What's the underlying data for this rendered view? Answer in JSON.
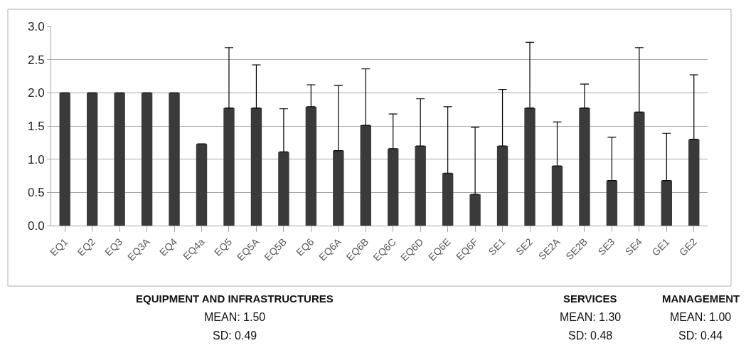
{
  "chart_data": {
    "type": "bar",
    "categories": [
      "EQ1",
      "EQ2",
      "EQ3",
      "EQ3A",
      "EQ4",
      "EQ4a",
      "EQ5",
      "EQ5A",
      "EQ5B",
      "EQ6",
      "EQ6A",
      "EQ6B",
      "EQ6C",
      "EQ6D",
      "EQ6E",
      "EQ6F",
      "SE1",
      "SE2",
      "SE2A",
      "SE2B",
      "SE3",
      "SE4",
      "GE1",
      "GE2"
    ],
    "values": [
      2.0,
      2.0,
      2.0,
      2.0,
      2.0,
      1.23,
      1.77,
      1.77,
      1.11,
      1.79,
      1.13,
      1.51,
      1.16,
      1.2,
      0.79,
      0.47,
      1.2,
      1.77,
      0.9,
      1.77,
      0.68,
      1.71,
      0.68,
      1.3
    ],
    "errors": [
      null,
      null,
      null,
      null,
      null,
      null,
      [
        1.77,
        2.68
      ],
      [
        1.77,
        2.42
      ],
      [
        1.11,
        1.76
      ],
      [
        1.79,
        2.12
      ],
      [
        1.13,
        2.11
      ],
      [
        1.51,
        2.36
      ],
      [
        1.16,
        1.68
      ],
      [
        1.2,
        1.91
      ],
      [
        0.79,
        1.79
      ],
      [
        0.47,
        1.48
      ],
      [
        1.2,
        2.05
      ],
      [
        1.77,
        2.76
      ],
      [
        0.9,
        1.56
      ],
      [
        1.77,
        2.13
      ],
      [
        0.68,
        1.33
      ],
      [
        1.71,
        2.68
      ],
      [
        0.68,
        1.39
      ],
      [
        1.3,
        2.27
      ]
    ],
    "color": "#3a3a3a",
    "ylim": [
      0,
      3.0
    ],
    "yticks": [
      {
        "value": 0,
        "label": "0.0"
      },
      {
        "value": 0.5,
        "label": "0.5"
      },
      {
        "value": 1,
        "label": "1.0"
      },
      {
        "value": 1.5,
        "label": "1.5"
      },
      {
        "value": 2,
        "label": "2.0"
      },
      {
        "value": 2.5,
        "label": "2.5"
      },
      {
        "value": 3,
        "label": "3.0"
      }
    ],
    "grid": "y",
    "legend": false,
    "annotations": [
      "EQUIPMENT AND INFRASTRUCTURES",
      "MEAN: 1.50",
      "SD: 0.49",
      "SERVICES",
      "MEAN: 1.30",
      "SD: 0.48",
      "MANAGEMENT",
      "MEAN: 1.00",
      "SD: 0.44"
    ]
  }
}
